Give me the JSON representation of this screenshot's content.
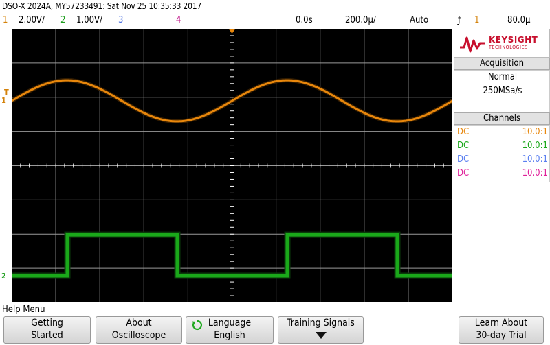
{
  "header": {
    "title": "DSO-X 2024A, MY57233491: Sat Nov 25 10:35:33 2017"
  },
  "status_bar": {
    "ch1_num": "1",
    "ch1_scale": "2.00V/",
    "ch2_num": "2",
    "ch2_scale": "1.00V/",
    "ch3_num": "3",
    "ch4_num": "4",
    "time_offset": "0.0s",
    "time_scale": "200.0µ/",
    "trigger_mode": "Auto",
    "trigger_symbol": "ƒ",
    "trigger_channel": "1",
    "trigger_level": "80.0µ"
  },
  "colors": {
    "ch1": "#e8870c",
    "ch2": "#1aa81a",
    "ch3": "#5a7ff0",
    "ch4": "#e0209a",
    "grid": "#9a9a9a",
    "ch1_label": "#d4820a",
    "ch2_label": "#1e9e1e",
    "ch3_label": "#4a6fe0",
    "ch4_label": "#c0188a"
  },
  "grid_markers": {
    "ch1_ground": "1",
    "ch1_trigger": "T",
    "ch2_ground": "2"
  },
  "side_panel": {
    "logo": "KEYSIGHT",
    "logo_sub": "TECHNOLOGIES",
    "acquisition_title": "Acquisition",
    "acquisition_mode": "Normal",
    "sample_rate": "250MSa/s",
    "channels_title": "Channels",
    "channels": [
      {
        "coupling": "DC",
        "probe": "10.0:1"
      },
      {
        "coupling": "DC",
        "probe": "10.0:1"
      },
      {
        "coupling": "DC",
        "probe": "10.0:1"
      },
      {
        "coupling": "DC",
        "probe": "10.0:1"
      }
    ]
  },
  "menu": {
    "title": "Help Menu",
    "softkeys": [
      {
        "line1": "Getting",
        "line2": "Started"
      },
      {
        "line1": "About",
        "line2": "Oscilloscope"
      },
      {
        "line1": "Language",
        "line2": "English"
      },
      {
        "line1": "Training Signals",
        "line2": ""
      },
      {
        "line1": "Learn About",
        "line2": "30-day Trial"
      }
    ]
  },
  "waveforms": {
    "ch1": {
      "shape": "sine",
      "frequency_hz": 1000,
      "amplitude_v": 1.2
    },
    "ch2": {
      "shape": "square",
      "frequency_hz": 1000,
      "high_v": 1.2,
      "low_v": 0.0,
      "duty": 0.5
    }
  }
}
